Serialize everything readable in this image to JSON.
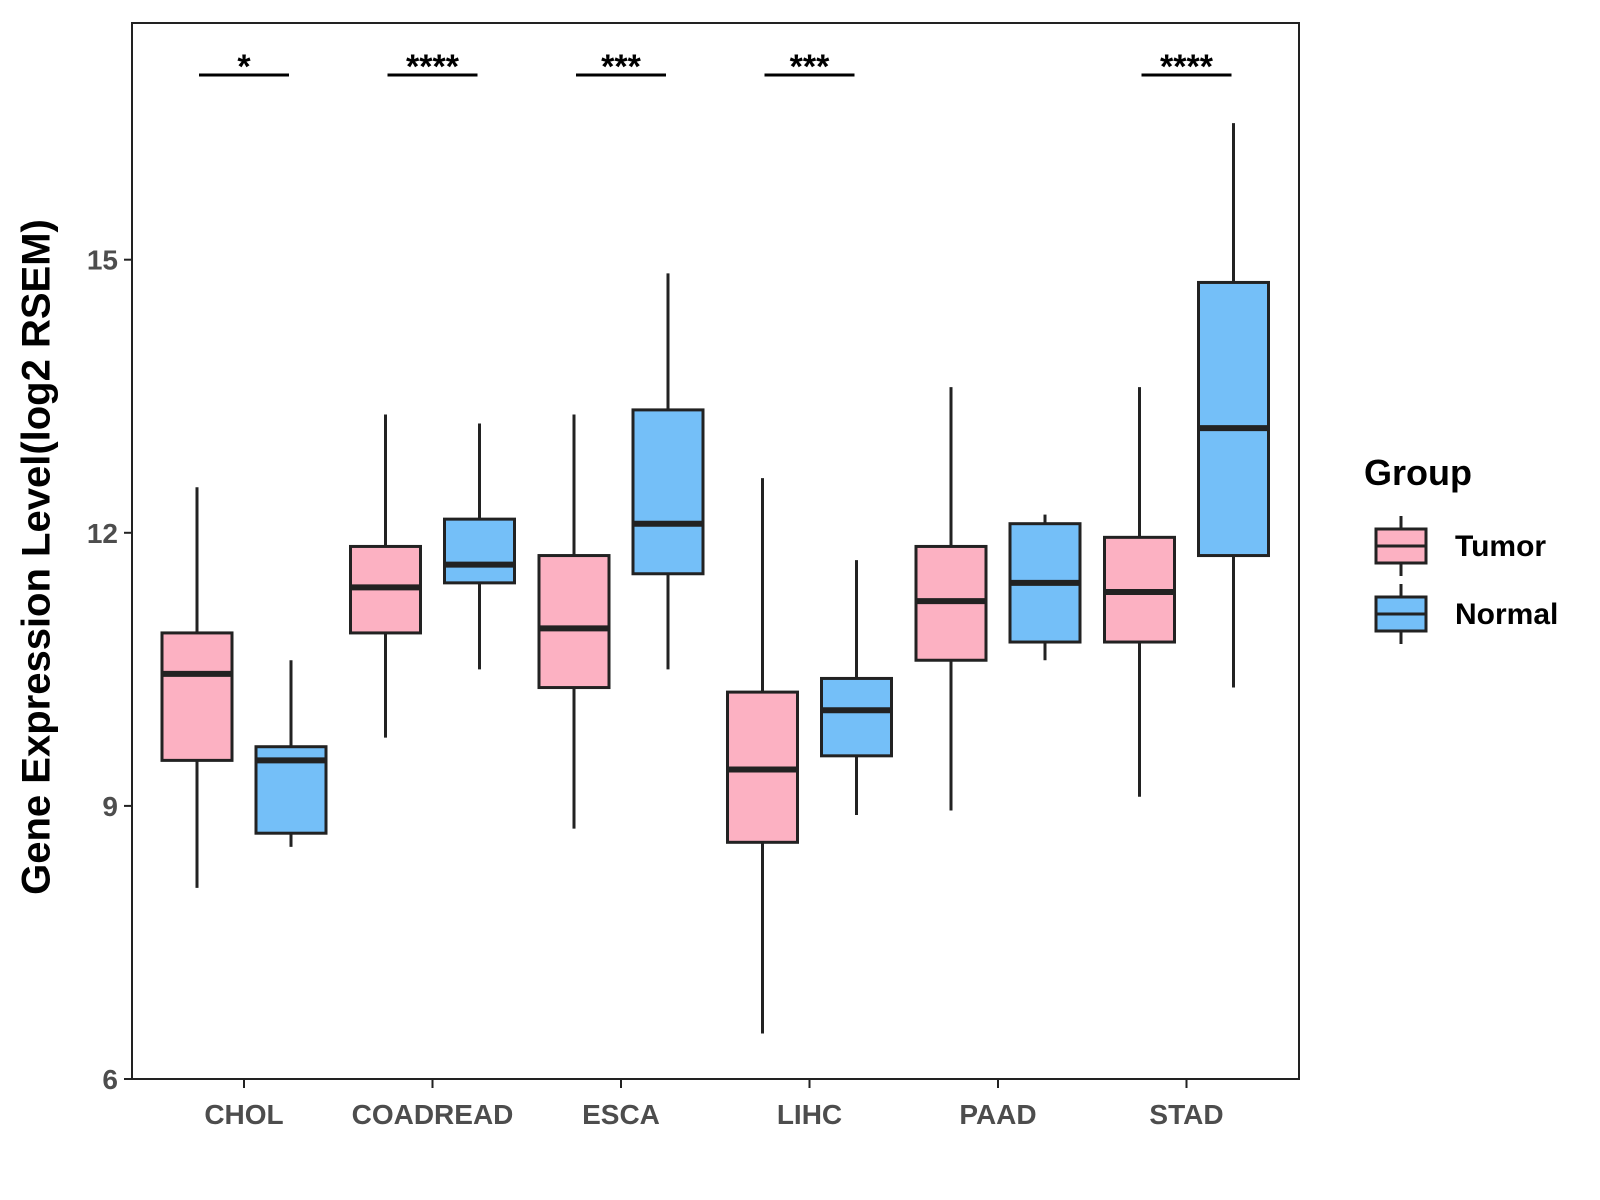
{
  "chart_data": {
    "type": "boxplot",
    "title": "",
    "xlabel": "",
    "ylabel": "Gene Expression Level(log2 RSEM)",
    "ylim": [
      6,
      17.6
    ],
    "yticks": [
      6,
      9,
      12,
      15
    ],
    "grid": false,
    "legend": {
      "title": "Group",
      "position": "right"
    },
    "categories": [
      "CHOL",
      "COADREAD",
      "ESCA",
      "LIHC",
      "PAAD",
      "STAD"
    ],
    "series": [
      {
        "name": "Tumor",
        "color": "#FCB1C2",
        "boxes": [
          {
            "whisker_low": 8.1,
            "q1": 9.5,
            "median": 10.45,
            "q3": 10.9,
            "whisker_high": 12.5
          },
          {
            "whisker_low": 9.75,
            "q1": 10.9,
            "median": 11.4,
            "q3": 11.85,
            "whisker_high": 13.3
          },
          {
            "whisker_low": 8.75,
            "q1": 10.3,
            "median": 10.95,
            "q3": 11.75,
            "whisker_high": 13.3
          },
          {
            "whisker_low": 6.5,
            "q1": 8.6,
            "median": 9.4,
            "q3": 10.25,
            "whisker_high": 12.6
          },
          {
            "whisker_low": 8.95,
            "q1": 10.6,
            "median": 11.25,
            "q3": 11.85,
            "whisker_high": 13.6
          },
          {
            "whisker_low": 9.1,
            "q1": 10.8,
            "median": 11.35,
            "q3": 11.95,
            "whisker_high": 13.6
          }
        ]
      },
      {
        "name": "Normal",
        "color": "#74BFF8",
        "boxes": [
          {
            "whisker_low": 8.55,
            "q1": 8.7,
            "median": 9.5,
            "q3": 9.65,
            "whisker_high": 10.6
          },
          {
            "whisker_low": 10.5,
            "q1": 11.45,
            "median": 11.65,
            "q3": 12.15,
            "whisker_high": 13.2
          },
          {
            "whisker_low": 10.5,
            "q1": 11.55,
            "median": 12.1,
            "q3": 13.35,
            "whisker_high": 14.85
          },
          {
            "whisker_low": 8.9,
            "q1": 9.55,
            "median": 10.05,
            "q3": 10.4,
            "whisker_high": 11.7
          },
          {
            "whisker_low": 10.6,
            "q1": 10.8,
            "median": 11.45,
            "q3": 12.1,
            "whisker_high": 12.2
          },
          {
            "whisker_low": 10.3,
            "q1": 11.75,
            "median": 13.15,
            "q3": 14.75,
            "whisker_high": 16.5
          }
        ]
      }
    ],
    "significance": [
      "*",
      "****",
      "***",
      "***",
      "",
      "****"
    ]
  }
}
